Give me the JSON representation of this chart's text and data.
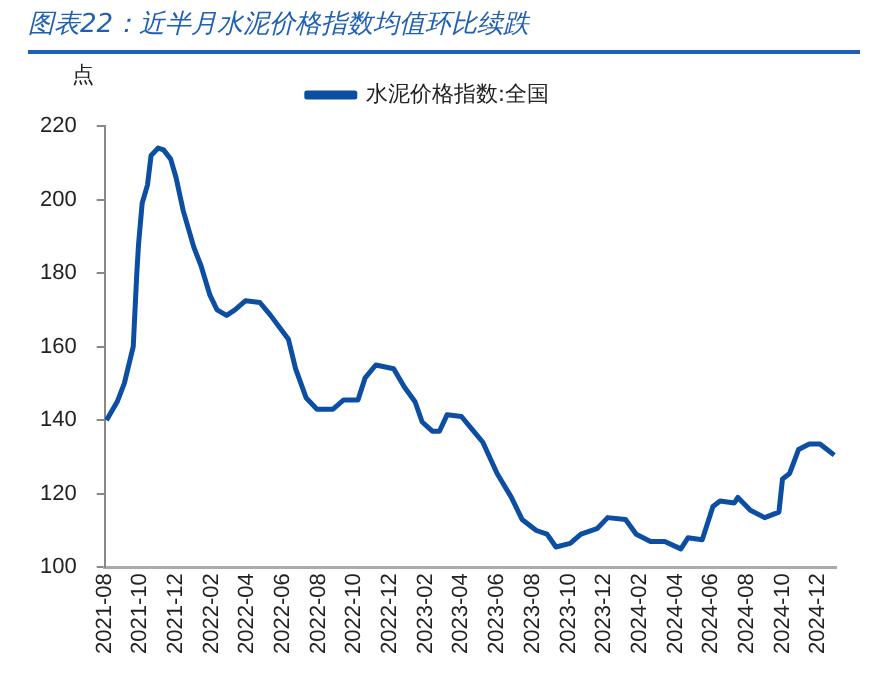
{
  "chart_data": {
    "type": "line",
    "title": "图表22：近半月水泥价格指数均值环比续跌",
    "ylabel": "点",
    "legend": "top",
    "grid": false,
    "marker": "none",
    "line_style": "solid",
    "xlim": [
      "2021-08",
      "2025-01"
    ],
    "xticks": [
      "2021-08",
      "2021-10",
      "2021-12",
      "2022-02",
      "2022-04",
      "2022-06",
      "2022-08",
      "2022-10",
      "2022-12",
      "2023-02",
      "2023-04",
      "2023-06",
      "2023-08",
      "2023-10",
      "2023-12",
      "2024-02",
      "2024-04",
      "2024-06",
      "2024-08",
      "2024-10",
      "2024-12"
    ],
    "ylim": [
      100,
      220
    ],
    "yticks": [
      100,
      120,
      140,
      160,
      180,
      200,
      220
    ],
    "x": [
      "2021-08-04",
      "2021-08-22",
      "2021-09-04",
      "2021-09-10",
      "2021-09-19",
      "2021-09-25",
      "2021-09-28",
      "2021-10-04",
      "2021-10-13",
      "2021-10-19",
      "2021-11-01",
      "2021-11-10",
      "2021-11-22",
      "2021-12-01",
      "2021-12-13",
      "2022-01-01",
      "2022-01-13",
      "2022-01-28",
      "2022-02-10",
      "2022-02-26",
      "2022-03-10",
      "2022-03-28",
      "2022-04-22",
      "2022-05-10",
      "2022-06-10",
      "2022-06-22",
      "2022-07-10",
      "2022-07-28",
      "2022-08-25",
      "2022-09-13",
      "2022-10-07",
      "2022-10-19",
      "2022-11-07",
      "2022-12-07",
      "2022-12-25",
      "2023-01-13",
      "2023-01-25",
      "2023-02-12",
      "2023-02-24",
      "2023-03-07",
      "2023-04-01",
      "2023-04-19",
      "2023-05-07",
      "2023-06-01",
      "2023-06-25",
      "2023-07-13",
      "2023-08-07",
      "2023-08-25",
      "2023-09-10",
      "2023-10-04",
      "2023-10-22",
      "2023-11-19",
      "2023-12-07",
      "2024-01-07",
      "2024-01-25",
      "2024-02-19",
      "2024-03-13",
      "2024-04-10",
      "2024-04-22",
      "2024-05-16",
      "2024-06-04",
      "2024-06-16",
      "2024-07-10",
      "2024-07-16",
      "2024-08-07",
      "2024-09-01",
      "2024-09-25",
      "2024-10-01",
      "2024-10-13",
      "2024-10-28",
      "2024-11-16",
      "2024-12-04",
      "2024-12-16",
      "2024-12-28"
    ],
    "series": [
      {
        "name": "水泥价格指数:全国",
        "color": "#0b4ea2",
        "values": [
          140,
          145,
          150,
          154,
          160,
          180,
          188,
          199,
          204,
          212,
          214,
          213.5,
          211,
          206,
          197,
          187,
          182,
          174,
          170,
          168.5,
          170,
          172.5,
          172,
          168.5,
          162,
          154,
          146,
          143,
          143,
          145.5,
          145.5,
          151.5,
          155,
          154,
          149,
          145,
          139.5,
          137,
          137,
          141.5,
          141,
          137.5,
          134,
          125.5,
          119,
          113,
          110,
          109,
          105.5,
          106.5,
          109,
          110.5,
          113.5,
          113,
          109,
          107,
          107,
          105,
          108,
          107.5,
          116.5,
          118,
          117.5,
          119,
          115.5,
          113.5,
          115,
          124,
          125.5,
          132,
          133.5,
          133.5,
          132,
          130.5
        ]
      }
    ]
  }
}
